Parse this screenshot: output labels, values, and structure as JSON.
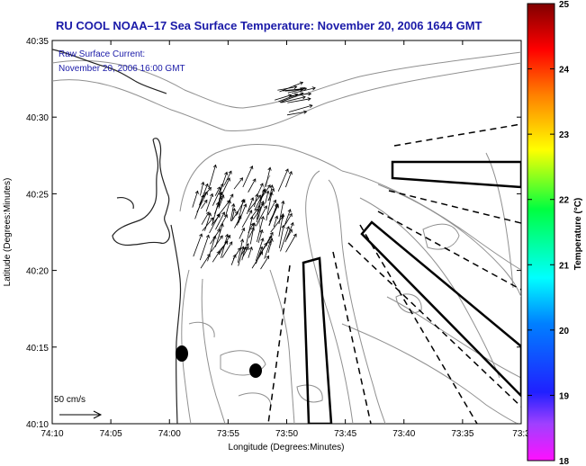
{
  "title": "RU COOL  NOAA–17  Sea Surface Temperature:  November 20, 2006 1644 GMT",
  "annotation": {
    "line1": "Raw Surface Current:",
    "line2": "November 20, 2006 16:00 GMT"
  },
  "axes": {
    "xlabel": "Longitude (Degrees:Minutes)",
    "ylabel": "Latitude (Degrees:Minutes)",
    "x_ticks": [
      "74:10",
      "74:05",
      "74:00",
      "73:55",
      "73:50",
      "73:45",
      "73:40",
      "73:35",
      "73:3"
    ],
    "y_ticks": [
      "40:35",
      "40:30",
      "40:25",
      "40:20",
      "40:15",
      "40:10"
    ]
  },
  "scale_label": "50 cm/s",
  "colorbar": {
    "label": "Temperature (°C)",
    "ticks": [
      "25",
      "24",
      "23",
      "22",
      "21",
      "20",
      "19",
      "18"
    ],
    "range": [
      18,
      25
    ],
    "colors": [
      "#ff00ff",
      "#0000ff",
      "#00ffff",
      "#00ff00",
      "#ffff00",
      "#ff8000",
      "#ff0000",
      "#800000"
    ]
  }
}
